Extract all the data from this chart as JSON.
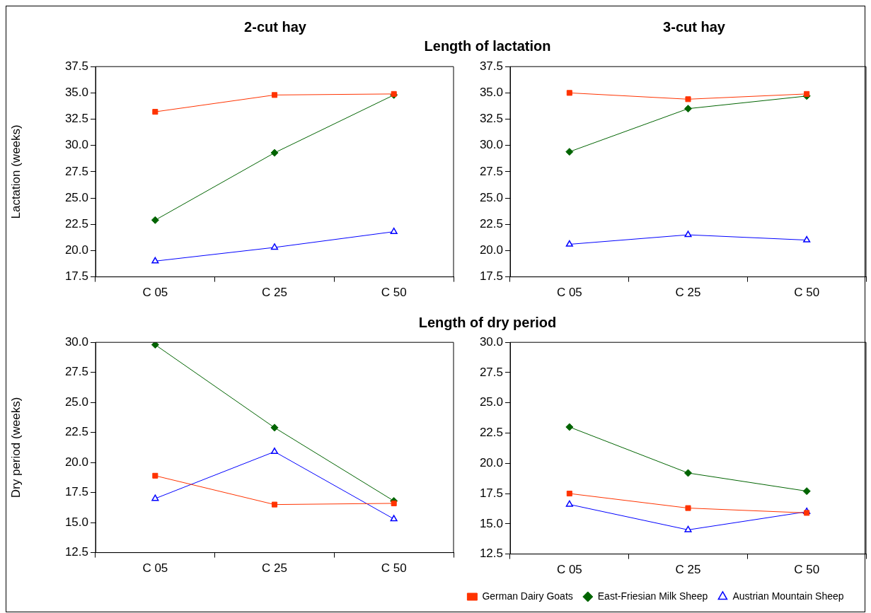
{
  "chart_data": [
    {
      "type": "line",
      "title": "2-cut hay",
      "subtitle": "Length of lactation",
      "ylabel": "Lactation (weeks)",
      "categories": [
        "C 05",
        "C 25",
        "C 50"
      ],
      "ylim": [
        17.5,
        37.5
      ],
      "yticks": [
        {
          "value": 17.5,
          "label": "17.5"
        },
        {
          "value": 20,
          "label": "20.0"
        },
        {
          "value": 22.5,
          "label": "22.5"
        },
        {
          "value": 25,
          "label": "25.0"
        },
        {
          "value": 27.5,
          "label": "27.5"
        },
        {
          "value": 30,
          "label": "30.0"
        },
        {
          "value": 32.5,
          "label": "32.5"
        },
        {
          "value": 35,
          "label": "35.0"
        },
        {
          "value": 37.5,
          "label": "37.5"
        }
      ],
      "series": [
        {
          "color": "#0000ff",
          "marker": "triangle",
          "values": [
            19.0,
            20.3,
            21.8
          ]
        },
        {
          "color": "#006400",
          "marker": "diamond",
          "values": [
            22.9,
            29.3,
            34.8
          ]
        },
        {
          "color": "#ff3300",
          "marker": "square",
          "values": [
            33.2,
            34.8,
            34.9
          ]
        }
      ]
    },
    {
      "type": "line",
      "title": "3-cut hay",
      "categories": [
        "C 05",
        "C 25",
        "C 50"
      ],
      "ylim": [
        17.5,
        37.5
      ],
      "yticks": [
        {
          "value": 17.5,
          "label": "17.5"
        },
        {
          "value": 20,
          "label": "20.0"
        },
        {
          "value": 22.5,
          "label": "22.5"
        },
        {
          "value": 25,
          "label": "25.0"
        },
        {
          "value": 27.5,
          "label": "27.5"
        },
        {
          "value": 30,
          "label": "30.0"
        },
        {
          "value": 32.5,
          "label": "32.5"
        },
        {
          "value": 35,
          "label": "35.0"
        },
        {
          "value": 37.5,
          "label": "37.5"
        }
      ],
      "series": [
        {
          "color": "#0000ff",
          "marker": "triangle",
          "values": [
            20.6,
            21.5,
            21.0
          ]
        },
        {
          "color": "#006400",
          "marker": "diamond",
          "values": [
            29.4,
            33.5,
            34.7
          ]
        },
        {
          "color": "#ff3300",
          "marker": "square",
          "values": [
            35.0,
            34.4,
            34.9
          ]
        }
      ]
    },
    {
      "type": "line",
      "title": "Length of dry period",
      "ylabel": "Dry period (weeks)",
      "categories": [
        "C 05",
        "C 25",
        "C 50"
      ],
      "ylim": [
        12.5,
        30
      ],
      "yticks": [
        {
          "value": 12.5,
          "label": "12.5"
        },
        {
          "value": 15,
          "label": "15.0"
        },
        {
          "value": 17.5,
          "label": "17.5"
        },
        {
          "value": 20,
          "label": "20.0"
        },
        {
          "value": 22.5,
          "label": "22.5"
        },
        {
          "value": 25,
          "label": "25.0"
        },
        {
          "value": 27.5,
          "label": "27.5"
        },
        {
          "value": 30,
          "label": "30.0"
        }
      ],
      "series": [
        {
          "color": "#0000ff",
          "marker": "triangle",
          "values": [
            17.0,
            20.9,
            15.3
          ]
        },
        {
          "color": "#006400",
          "marker": "diamond",
          "values": [
            29.8,
            22.9,
            16.8
          ]
        },
        {
          "color": "#ff3300",
          "marker": "square",
          "values": [
            18.9,
            16.5,
            16.6
          ]
        }
      ]
    },
    {
      "type": "line",
      "categories": [
        "C 05",
        "C 25",
        "C 50"
      ],
      "ylim": [
        12.5,
        30
      ],
      "yticks": [
        {
          "value": 12.5,
          "label": "12.5"
        },
        {
          "value": 15,
          "label": "15.0"
        },
        {
          "value": 17.5,
          "label": "17.5"
        },
        {
          "value": 20,
          "label": "20.0"
        },
        {
          "value": 22.5,
          "label": "22.5"
        },
        {
          "value": 25,
          "label": "25.0"
        },
        {
          "value": 27.5,
          "label": "27.5"
        },
        {
          "value": 30,
          "label": "30.0"
        }
      ],
      "legend": "bottom",
      "series": [
        {
          "name": "Austrian Mountain Sheep",
          "color": "#0000ff",
          "marker": "triangle",
          "values": [
            16.6,
            14.5,
            16.0
          ]
        },
        {
          "name": "East-Friesian Milk Sheep",
          "color": "#006400",
          "marker": "diamond",
          "values": [
            23.0,
            19.2,
            17.7
          ]
        },
        {
          "name": "German Dairy Goats",
          "color": "#ff3300",
          "marker": "square",
          "values": [
            17.5,
            16.3,
            15.9
          ]
        }
      ]
    }
  ]
}
